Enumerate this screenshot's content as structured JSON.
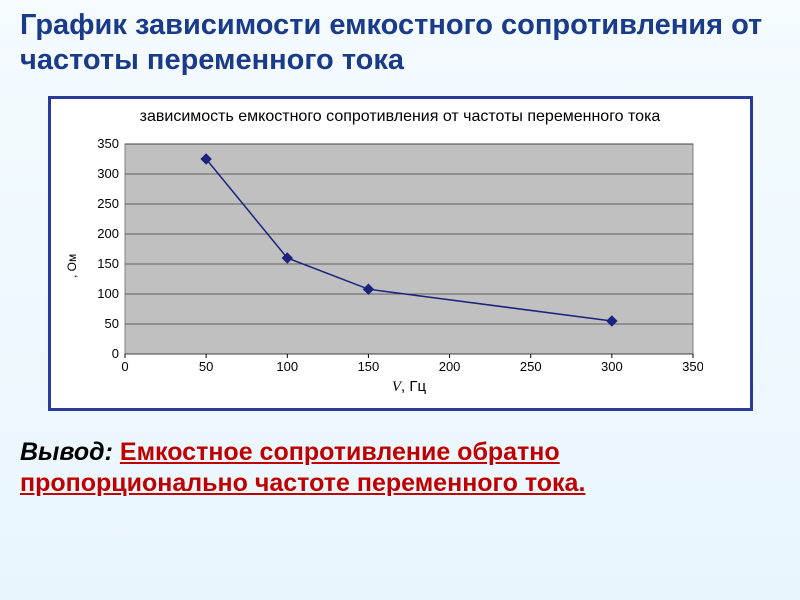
{
  "heading": "График зависимости емкостного сопротивления от частоты переменного тока",
  "chart": {
    "type": "line",
    "title": "зависимость емкостного сопротивления от частоты переменного тока",
    "yaxis_label": ", Ом",
    "xaxis_label_symbol": "V",
    "xaxis_label_unit": ", Гц",
    "background_color": "#c0c0c0",
    "grid_color": "#000000",
    "plot_border_color": "#808080",
    "line_color": "#1a237e",
    "marker_color": "#1a237e",
    "marker_style": "diamond",
    "marker_size": 5,
    "line_width": 1.5,
    "xlim": [
      0,
      350
    ],
    "ylim": [
      0,
      350
    ],
    "xticks": [
      0,
      50,
      100,
      150,
      200,
      250,
      300,
      350
    ],
    "yticks": [
      0,
      50,
      100,
      150,
      200,
      250,
      300,
      350
    ],
    "data_x": [
      50,
      100,
      150,
      300
    ],
    "data_y": [
      325,
      160,
      108,
      55
    ]
  },
  "conclusion": {
    "label": "Вывод:  ",
    "statement": "Емкостное сопротивление обратно пропорционально частоте переменного тока."
  },
  "frame_border_color": "#2a3a9a",
  "heading_color": "#1a3a8a",
  "statement_color": "#c00000"
}
